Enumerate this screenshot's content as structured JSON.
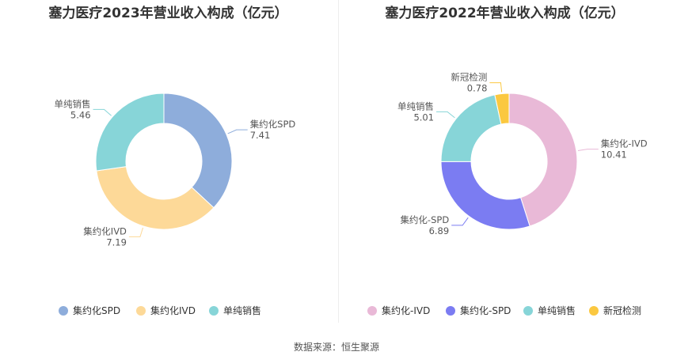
{
  "charts": {
    "left": {
      "title": "塞力医疗2023年营业收入构成（亿元）",
      "chart_data": {
        "type": "pie",
        "title": "塞力医疗2023年营业收入构成（亿元）",
        "categories": [
          "集约化SPD",
          "集约化IVD",
          "单纯销售"
        ],
        "values": [
          7.41,
          7.19,
          5.46
        ],
        "value_labels": [
          "7.41",
          "7.19",
          "5.46"
        ],
        "colors": [
          "#8eaddb",
          "#fdd998",
          "#87d5d8"
        ],
        "donut": true,
        "legend": "bottom"
      }
    },
    "right": {
      "title": "塞力医疗2022年营业收入构成（亿元）",
      "chart_data": {
        "type": "pie",
        "title": "塞力医疗2022年营业收入构成（亿元）",
        "categories": [
          "集约化-IVD",
          "集约化-SPD",
          "单纯销售",
          "新冠检测"
        ],
        "values": [
          10.41,
          6.89,
          5.01,
          0.78
        ],
        "value_labels": [
          "10.41",
          "6.89",
          "5.01",
          "0.78"
        ],
        "colors": [
          "#e9b9d7",
          "#7b7cf2",
          "#87d5d8",
          "#fbc840"
        ],
        "donut": true,
        "legend": "bottom"
      }
    }
  },
  "source": "数据来源：恒生聚源"
}
